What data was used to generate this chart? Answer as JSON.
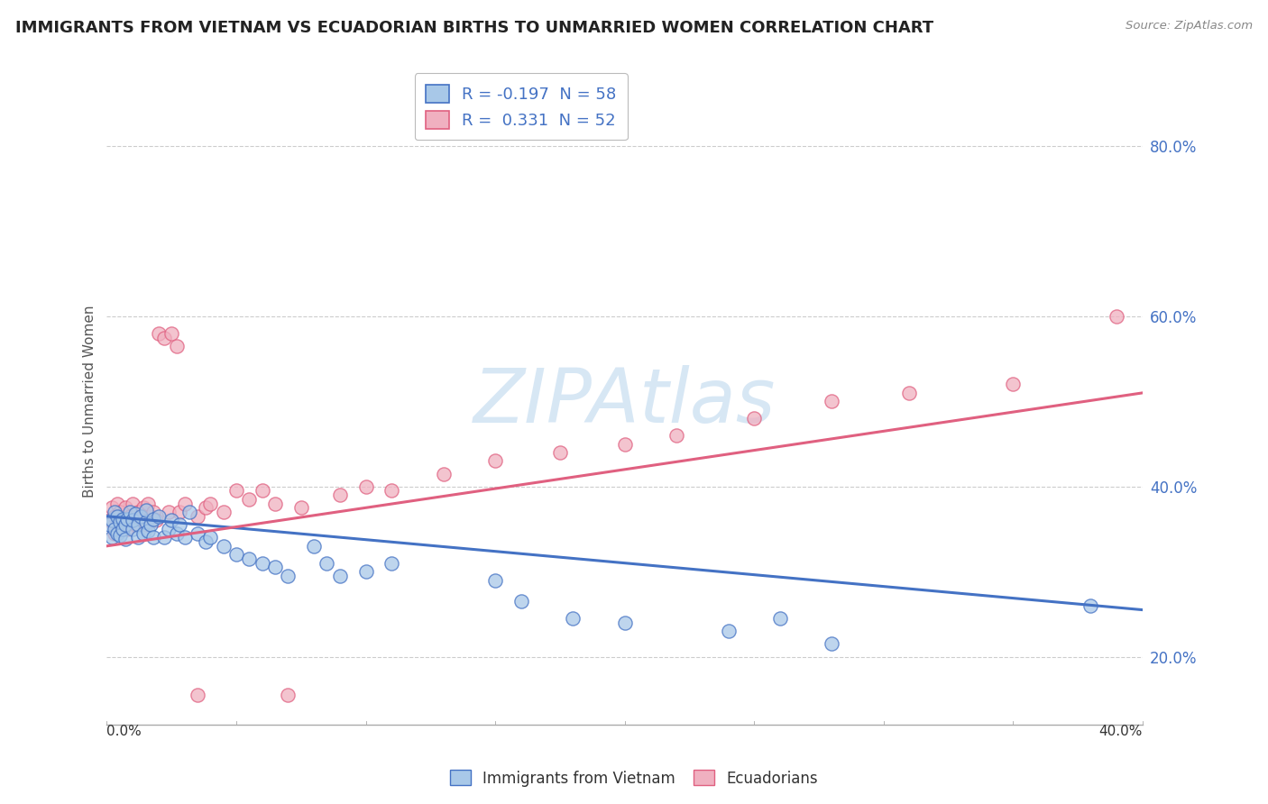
{
  "title": "IMMIGRANTS FROM VIETNAM VS ECUADORIAN BIRTHS TO UNMARRIED WOMEN CORRELATION CHART",
  "source": "Source: ZipAtlas.com",
  "ylabel": "Births to Unmarried Women",
  "y_tick_vals": [
    0.2,
    0.4,
    0.6,
    0.8
  ],
  "xlim": [
    0.0,
    0.4
  ],
  "ylim": [
    0.12,
    0.88
  ],
  "legend_label1": "Immigrants from Vietnam",
  "legend_label2": "Ecuadorians",
  "blue_color": "#A8C8E8",
  "pink_color": "#F0B0C0",
  "blue_line_color": "#4472C4",
  "pink_line_color": "#E06080",
  "watermark": "ZIPAtlas",
  "blue_scatter_x": [
    0.001,
    0.002,
    0.002,
    0.003,
    0.003,
    0.004,
    0.004,
    0.005,
    0.005,
    0.006,
    0.006,
    0.007,
    0.007,
    0.008,
    0.009,
    0.01,
    0.01,
    0.011,
    0.012,
    0.012,
    0.013,
    0.014,
    0.015,
    0.015,
    0.016,
    0.017,
    0.018,
    0.018,
    0.02,
    0.022,
    0.024,
    0.025,
    0.027,
    0.028,
    0.03,
    0.032,
    0.035,
    0.038,
    0.04,
    0.045,
    0.05,
    0.055,
    0.06,
    0.065,
    0.07,
    0.08,
    0.085,
    0.09,
    0.1,
    0.11,
    0.15,
    0.16,
    0.18,
    0.2,
    0.24,
    0.26,
    0.28,
    0.38
  ],
  "blue_scatter_y": [
    0.355,
    0.36,
    0.34,
    0.37,
    0.35,
    0.365,
    0.345,
    0.358,
    0.342,
    0.362,
    0.35,
    0.355,
    0.338,
    0.362,
    0.37,
    0.35,
    0.36,
    0.368,
    0.355,
    0.34,
    0.365,
    0.345,
    0.358,
    0.372,
    0.348,
    0.355,
    0.362,
    0.34,
    0.365,
    0.34,
    0.35,
    0.36,
    0.345,
    0.355,
    0.34,
    0.37,
    0.345,
    0.335,
    0.34,
    0.33,
    0.32,
    0.315,
    0.31,
    0.305,
    0.295,
    0.33,
    0.31,
    0.295,
    0.3,
    0.31,
    0.29,
    0.265,
    0.245,
    0.24,
    0.23,
    0.245,
    0.215,
    0.26
  ],
  "pink_scatter_x": [
    0.001,
    0.002,
    0.003,
    0.003,
    0.004,
    0.005,
    0.005,
    0.006,
    0.007,
    0.008,
    0.009,
    0.01,
    0.011,
    0.012,
    0.013,
    0.014,
    0.015,
    0.016,
    0.017,
    0.018,
    0.019,
    0.02,
    0.022,
    0.024,
    0.025,
    0.027,
    0.028,
    0.03,
    0.035,
    0.038,
    0.04,
    0.045,
    0.05,
    0.055,
    0.06,
    0.065,
    0.075,
    0.09,
    0.1,
    0.11,
    0.13,
    0.15,
    0.175,
    0.2,
    0.22,
    0.25,
    0.28,
    0.31,
    0.35,
    0.39,
    0.035,
    0.07
  ],
  "pink_scatter_y": [
    0.36,
    0.375,
    0.345,
    0.365,
    0.38,
    0.355,
    0.37,
    0.36,
    0.375,
    0.35,
    0.365,
    0.38,
    0.355,
    0.37,
    0.365,
    0.375,
    0.355,
    0.38,
    0.365,
    0.37,
    0.36,
    0.58,
    0.575,
    0.37,
    0.58,
    0.565,
    0.37,
    0.38,
    0.365,
    0.375,
    0.38,
    0.37,
    0.395,
    0.385,
    0.395,
    0.38,
    0.375,
    0.39,
    0.4,
    0.395,
    0.415,
    0.43,
    0.44,
    0.45,
    0.46,
    0.48,
    0.5,
    0.51,
    0.52,
    0.6,
    0.155,
    0.155
  ],
  "blue_trend_x": [
    0.0,
    0.4
  ],
  "blue_trend_y": [
    0.365,
    0.255
  ],
  "pink_trend_x": [
    0.0,
    0.4
  ],
  "pink_trend_y": [
    0.33,
    0.51
  ]
}
